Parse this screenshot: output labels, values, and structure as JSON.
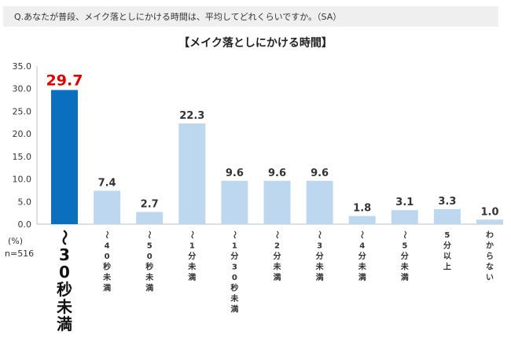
{
  "question": "Q.あなたが普段、メイク落としにかける時間は、平均してどれくらいですか。（SA）",
  "unit_label": "(%)",
  "sample_label": "n=516",
  "colors": {
    "highlight_bar": "#0a6fbf",
    "bar": "#bdd7ee",
    "highlight_value": "#e00000",
    "text": "#333333"
  },
  "chart_data": {
    "type": "bar",
    "title": "【メイク落としにかける時間】",
    "categories": [
      "～30秒未満",
      "～40秒未満",
      "～50秒未満",
      "～1分未満",
      "～1分30秒未満",
      "～2分未満",
      "～3分未満",
      "～4分未満",
      "～5分未満",
      "5分以上",
      "わからない"
    ],
    "values": [
      29.7,
      7.4,
      2.7,
      22.3,
      9.6,
      9.6,
      9.6,
      1.8,
      3.1,
      3.3,
      1.0
    ],
    "value_labels": [
      "29.7",
      "7.4",
      "2.7",
      "22.3",
      "9.6",
      "9.6",
      "9.6",
      "1.8",
      "3.1",
      "3.3",
      "1.0"
    ],
    "yticks": [
      "0.0",
      "5.0",
      "10.0",
      "15.0",
      "20.0",
      "25.0",
      "30.0",
      "35.0"
    ],
    "ylim": [
      0,
      35
    ],
    "highlight_index": 0,
    "grid": false,
    "xlabel": "",
    "ylabel": ""
  }
}
